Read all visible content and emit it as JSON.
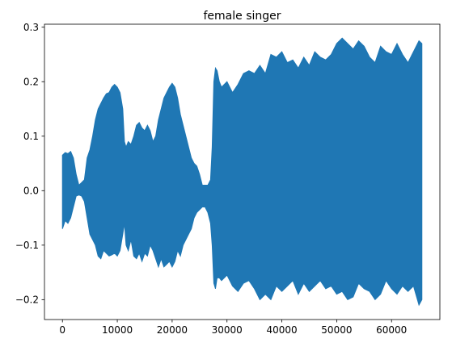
{
  "chart_data": {
    "type": "area",
    "title": "female singer",
    "xlabel": "",
    "ylabel": "",
    "xlim": [
      -3277,
      68812
    ],
    "ylim": [
      -0.2365,
      0.3055
    ],
    "grid": false,
    "x_ticks": [
      0,
      10000,
      20000,
      30000,
      40000,
      50000,
      60000
    ],
    "x_tick_labels": [
      "0",
      "10000",
      "20000",
      "30000",
      "40000",
      "50000",
      "60000"
    ],
    "y_ticks": [
      -0.2,
      -0.1,
      0.0,
      0.1,
      0.2,
      0.3
    ],
    "y_tick_labels": [
      "−0.2",
      "−0.1",
      "0.0",
      "0.1",
      "0.2",
      "0.3"
    ],
    "series": [
      {
        "color": "#1f77b4",
        "x": [
          0,
          500,
          1000,
          1500,
          2000,
          2500,
          3000,
          3500,
          4000,
          4500,
          5000,
          5500,
          6000,
          6500,
          7000,
          7500,
          8000,
          8500,
          9000,
          9500,
          10000,
          10500,
          11000,
          11300,
          11600,
          12000,
          12500,
          13000,
          13500,
          14000,
          14500,
          15000,
          15500,
          16000,
          16500,
          17000,
          17500,
          18000,
          18500,
          19000,
          19500,
          20000,
          20500,
          21000,
          21500,
          22000,
          22500,
          23000,
          23500,
          24000,
          24500,
          25000,
          25500,
          26000,
          26500,
          27000,
          27300,
          27600,
          27900,
          28200,
          28600,
          29000,
          30000,
          31000,
          32000,
          33000,
          34000,
          35000,
          36000,
          37000,
          38000,
          39000,
          40000,
          41000,
          42000,
          43000,
          44000,
          45000,
          46000,
          47000,
          48000,
          49000,
          50000,
          51000,
          52000,
          53000,
          54000,
          55000,
          56000,
          57000,
          58000,
          59000,
          60000,
          61000,
          62000,
          63000,
          64000,
          65000,
          65535
        ],
        "upper": [
          0.065,
          0.07,
          0.068,
          0.072,
          0.06,
          0.03,
          0.01,
          0.015,
          0.02,
          0.06,
          0.075,
          0.1,
          0.13,
          0.15,
          0.16,
          0.17,
          0.178,
          0.18,
          0.19,
          0.195,
          0.19,
          0.18,
          0.15,
          0.09,
          0.08,
          0.09,
          0.085,
          0.1,
          0.12,
          0.125,
          0.115,
          0.11,
          0.12,
          0.11,
          0.09,
          0.1,
          0.13,
          0.15,
          0.17,
          0.18,
          0.19,
          0.197,
          0.19,
          0.17,
          0.14,
          0.12,
          0.1,
          0.08,
          0.06,
          0.05,
          0.045,
          0.03,
          0.01,
          0.01,
          0.01,
          0.02,
          0.08,
          0.2,
          0.225,
          0.22,
          0.2,
          0.19,
          0.2,
          0.18,
          0.195,
          0.215,
          0.22,
          0.215,
          0.23,
          0.215,
          0.25,
          0.245,
          0.255,
          0.235,
          0.24,
          0.225,
          0.245,
          0.23,
          0.255,
          0.245,
          0.24,
          0.25,
          0.27,
          0.28,
          0.27,
          0.26,
          0.275,
          0.265,
          0.245,
          0.235,
          0.265,
          0.255,
          0.25,
          0.27,
          0.25,
          0.235,
          0.255,
          0.275,
          0.27
        ],
        "lower": [
          -0.07,
          -0.055,
          -0.06,
          -0.05,
          -0.03,
          -0.01,
          -0.008,
          -0.01,
          -0.02,
          -0.05,
          -0.08,
          -0.09,
          -0.1,
          -0.12,
          -0.125,
          -0.11,
          -0.115,
          -0.12,
          -0.118,
          -0.115,
          -0.12,
          -0.11,
          -0.08,
          -0.06,
          -0.1,
          -0.11,
          -0.09,
          -0.12,
          -0.125,
          -0.115,
          -0.13,
          -0.115,
          -0.12,
          -0.1,
          -0.11,
          -0.125,
          -0.14,
          -0.125,
          -0.14,
          -0.135,
          -0.13,
          -0.14,
          -0.13,
          -0.11,
          -0.12,
          -0.1,
          -0.09,
          -0.08,
          -0.07,
          -0.05,
          -0.04,
          -0.035,
          -0.03,
          -0.03,
          -0.04,
          -0.06,
          -0.1,
          -0.17,
          -0.18,
          -0.16,
          -0.16,
          -0.165,
          -0.155,
          -0.175,
          -0.185,
          -0.17,
          -0.165,
          -0.18,
          -0.2,
          -0.19,
          -0.2,
          -0.175,
          -0.185,
          -0.175,
          -0.165,
          -0.19,
          -0.17,
          -0.185,
          -0.175,
          -0.165,
          -0.18,
          -0.175,
          -0.19,
          -0.185,
          -0.2,
          -0.195,
          -0.17,
          -0.18,
          -0.185,
          -0.2,
          -0.19,
          -0.165,
          -0.18,
          -0.19,
          -0.175,
          -0.185,
          -0.175,
          -0.21,
          -0.2
        ]
      }
    ]
  }
}
